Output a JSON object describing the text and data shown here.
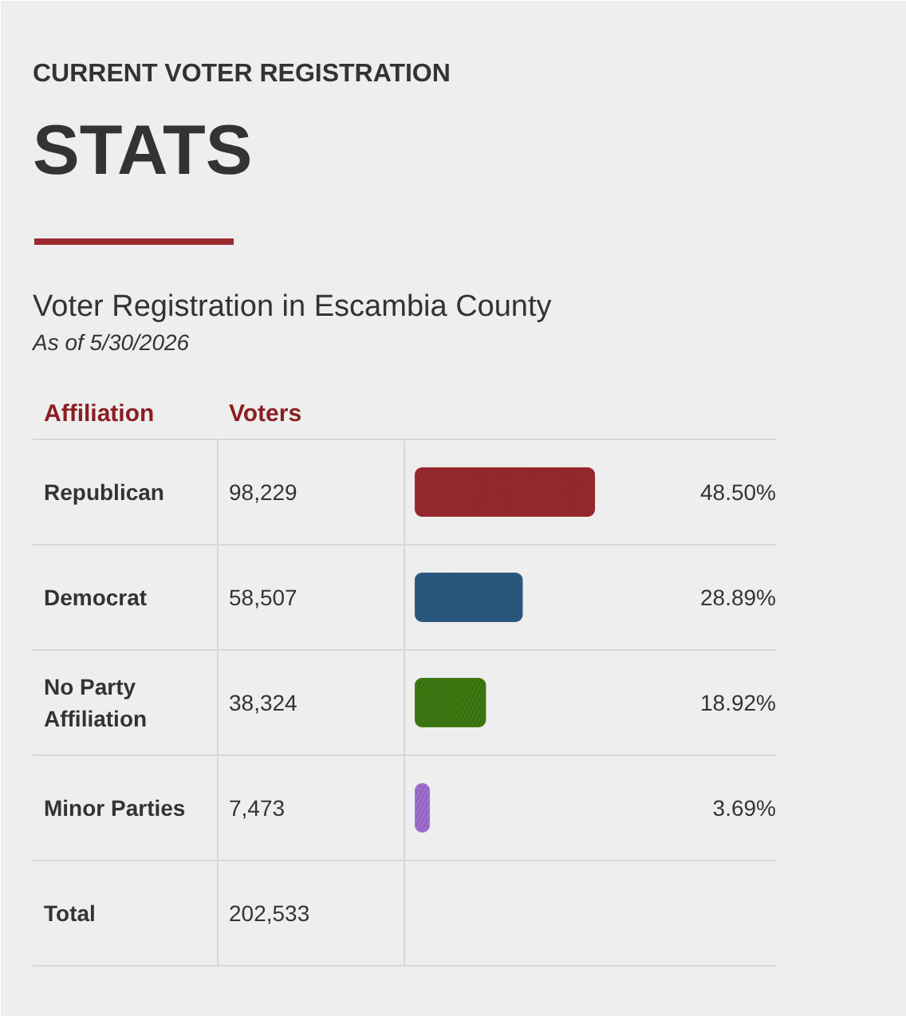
{
  "chart_data": {
    "type": "bar",
    "orientation": "horizontal",
    "title": "Voter Registration in Escambia County",
    "subtitle": "As of 5/30/2026",
    "ylabel": "Affiliation",
    "annotations": [
      "CURRENT VOTER REGISTRATION",
      "STATS",
      "Voters",
      "98,229",
      "58,507",
      "38,324",
      "7,473",
      "202,533"
    ],
    "categories": [
      "Republican",
      "Democrat",
      "No Party Affiliation",
      "Minor Parties",
      "Total"
    ],
    "values": [
      48.5,
      28.89,
      18.92,
      3.69,
      null
    ],
    "value_labels": [
      "48.50%",
      "28.89%",
      "18.92%",
      "3.69%",
      null
    ],
    "colors": [
      "#9a2a2e",
      "#2b5a82",
      "#3e7a10",
      "#a070d2",
      null
    ]
  }
}
